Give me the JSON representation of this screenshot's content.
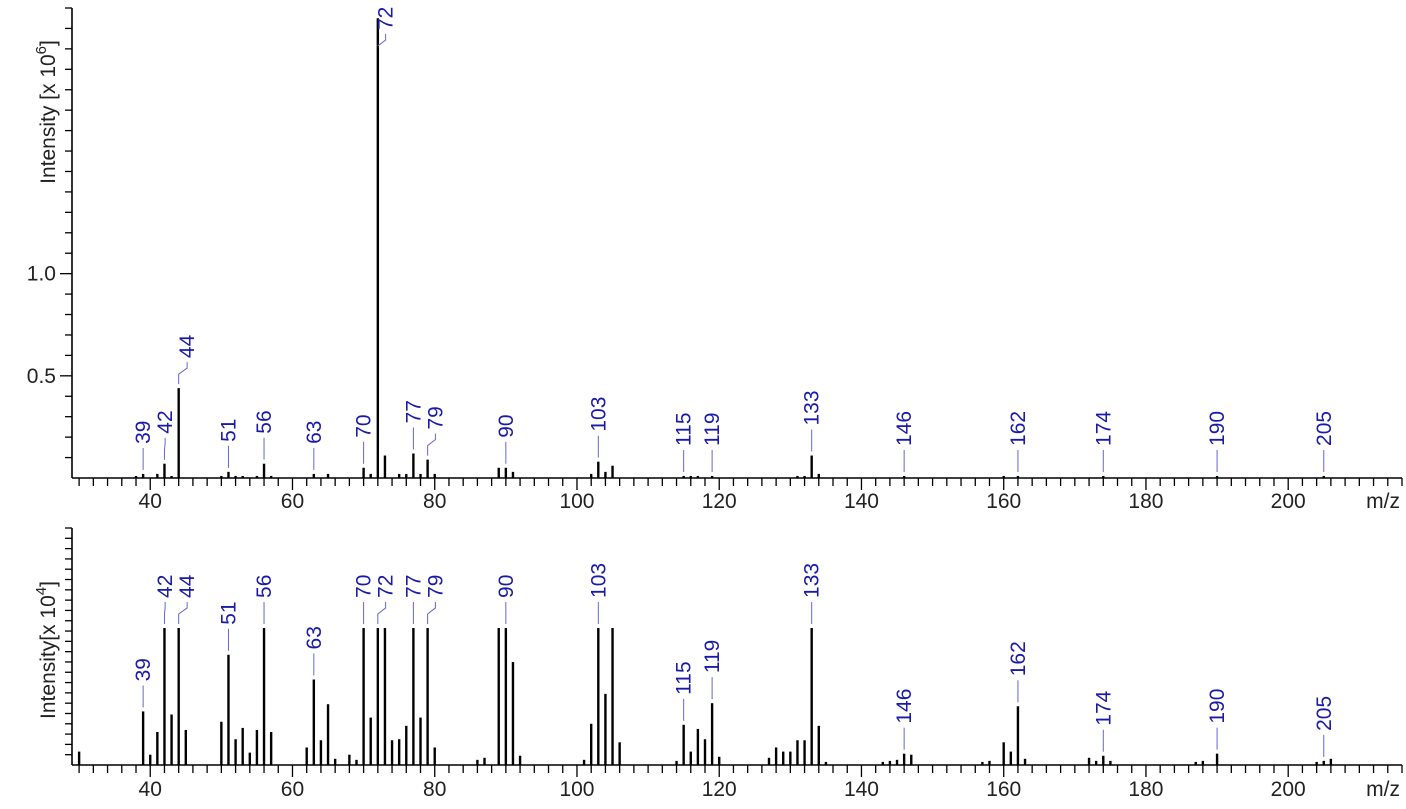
{
  "chart_data": [
    {
      "type": "bar",
      "title": "",
      "xlabel": "m/z",
      "ylabel": "Intensity [x 10",
      "ylabel_exp": "6",
      "ylabel_close": "]",
      "xlim": [
        29,
        216
      ],
      "ylim": [
        0,
        2.3
      ],
      "x_ticks": [
        40,
        60,
        80,
        100,
        120,
        140,
        160,
        180,
        200
      ],
      "y_ticks": [
        0.5,
        1.0
      ],
      "y_tick_labels": [
        "0.5",
        "1.0"
      ],
      "points": [
        {
          "mz": 38,
          "intensity": 0.01
        },
        {
          "mz": 39,
          "intensity": 0.02
        },
        {
          "mz": 41,
          "intensity": 0.02
        },
        {
          "mz": 42,
          "intensity": 0.07
        },
        {
          "mz": 43,
          "intensity": 0.01
        },
        {
          "mz": 44,
          "intensity": 0.44
        },
        {
          "mz": 50,
          "intensity": 0.01
        },
        {
          "mz": 51,
          "intensity": 0.03
        },
        {
          "mz": 52,
          "intensity": 0.01
        },
        {
          "mz": 53,
          "intensity": 0.01
        },
        {
          "mz": 55,
          "intensity": 0.01
        },
        {
          "mz": 56,
          "intensity": 0.07
        },
        {
          "mz": 57,
          "intensity": 0.01
        },
        {
          "mz": 63,
          "intensity": 0.02
        },
        {
          "mz": 65,
          "intensity": 0.02
        },
        {
          "mz": 70,
          "intensity": 0.05
        },
        {
          "mz": 71,
          "intensity": 0.02
        },
        {
          "mz": 72,
          "intensity": 2.25
        },
        {
          "mz": 73,
          "intensity": 0.11
        },
        {
          "mz": 75,
          "intensity": 0.02
        },
        {
          "mz": 76,
          "intensity": 0.02
        },
        {
          "mz": 77,
          "intensity": 0.12
        },
        {
          "mz": 78,
          "intensity": 0.02
        },
        {
          "mz": 79,
          "intensity": 0.09
        },
        {
          "mz": 80,
          "intensity": 0.02
        },
        {
          "mz": 89,
          "intensity": 0.05
        },
        {
          "mz": 90,
          "intensity": 0.05
        },
        {
          "mz": 91,
          "intensity": 0.03
        },
        {
          "mz": 102,
          "intensity": 0.02
        },
        {
          "mz": 103,
          "intensity": 0.08
        },
        {
          "mz": 104,
          "intensity": 0.03
        },
        {
          "mz": 105,
          "intensity": 0.06
        },
        {
          "mz": 115,
          "intensity": 0.01
        },
        {
          "mz": 116,
          "intensity": 0.01
        },
        {
          "mz": 117,
          "intensity": 0.01
        },
        {
          "mz": 119,
          "intensity": 0.01
        },
        {
          "mz": 131,
          "intensity": 0.01
        },
        {
          "mz": 132,
          "intensity": 0.01
        },
        {
          "mz": 133,
          "intensity": 0.11
        },
        {
          "mz": 134,
          "intensity": 0.02
        },
        {
          "mz": 146,
          "intensity": 0.01
        },
        {
          "mz": 160,
          "intensity": 0.01
        },
        {
          "mz": 162,
          "intensity": 0.01
        },
        {
          "mz": 174,
          "intensity": 0.01
        },
        {
          "mz": 190,
          "intensity": 0.01
        },
        {
          "mz": 205,
          "intensity": 0.01
        }
      ],
      "peak_labels": [
        {
          "mz": 39,
          "label": "39"
        },
        {
          "mz": 42,
          "label": "42"
        },
        {
          "mz": 44,
          "label": "44"
        },
        {
          "mz": 51,
          "label": "51"
        },
        {
          "mz": 56,
          "label": "56"
        },
        {
          "mz": 63,
          "label": "63"
        },
        {
          "mz": 70,
          "label": "70"
        },
        {
          "mz": 72,
          "label": "72"
        },
        {
          "mz": 77,
          "label": "77"
        },
        {
          "mz": 79,
          "label": "79"
        },
        {
          "mz": 90,
          "label": "90"
        },
        {
          "mz": 103,
          "label": "103"
        },
        {
          "mz": 115,
          "label": "115"
        },
        {
          "mz": 119,
          "label": "119"
        },
        {
          "mz": 133,
          "label": "133"
        },
        {
          "mz": 146,
          "label": "146"
        },
        {
          "mz": 162,
          "label": "162"
        },
        {
          "mz": 174,
          "label": "174"
        },
        {
          "mz": 190,
          "label": "190"
        },
        {
          "mz": 205,
          "label": "205"
        }
      ]
    },
    {
      "type": "bar",
      "title": "",
      "xlabel": "m/z",
      "ylabel": "Intensity[x 10",
      "ylabel_exp": "4",
      "ylabel_close": "]",
      "xlim": [
        29,
        216
      ],
      "ylim": [
        0,
        2.3
      ],
      "x_ticks": [
        40,
        60,
        80,
        100,
        120,
        140,
        160,
        180,
        200
      ],
      "y_ticks": [],
      "y_tick_labels": [],
      "points": [
        {
          "mz": 30,
          "intensity": 0.13
        },
        {
          "mz": 39,
          "intensity": 0.52
        },
        {
          "mz": 40,
          "intensity": 0.1
        },
        {
          "mz": 41,
          "intensity": 0.32
        },
        {
          "mz": 42,
          "intensity": 1.33
        },
        {
          "mz": 43,
          "intensity": 0.49
        },
        {
          "mz": 44,
          "intensity": 1.33
        },
        {
          "mz": 45,
          "intensity": 0.34
        },
        {
          "mz": 50,
          "intensity": 0.42
        },
        {
          "mz": 51,
          "intensity": 1.07
        },
        {
          "mz": 52,
          "intensity": 0.25
        },
        {
          "mz": 53,
          "intensity": 0.36
        },
        {
          "mz": 54,
          "intensity": 0.12
        },
        {
          "mz": 55,
          "intensity": 0.34
        },
        {
          "mz": 56,
          "intensity": 1.33
        },
        {
          "mz": 57,
          "intensity": 0.32
        },
        {
          "mz": 62,
          "intensity": 0.17
        },
        {
          "mz": 63,
          "intensity": 0.83
        },
        {
          "mz": 64,
          "intensity": 0.24
        },
        {
          "mz": 65,
          "intensity": 0.59
        },
        {
          "mz": 66,
          "intensity": 0.06
        },
        {
          "mz": 68,
          "intensity": 0.1
        },
        {
          "mz": 69,
          "intensity": 0.05
        },
        {
          "mz": 70,
          "intensity": 1.33
        },
        {
          "mz": 71,
          "intensity": 0.46
        },
        {
          "mz": 72,
          "intensity": 1.33
        },
        {
          "mz": 73,
          "intensity": 1.33
        },
        {
          "mz": 74,
          "intensity": 0.24
        },
        {
          "mz": 75,
          "intensity": 0.25
        },
        {
          "mz": 76,
          "intensity": 0.38
        },
        {
          "mz": 77,
          "intensity": 1.33
        },
        {
          "mz": 78,
          "intensity": 0.46
        },
        {
          "mz": 79,
          "intensity": 1.33
        },
        {
          "mz": 80,
          "intensity": 0.17
        },
        {
          "mz": 86,
          "intensity": 0.05
        },
        {
          "mz": 87,
          "intensity": 0.07
        },
        {
          "mz": 89,
          "intensity": 1.33
        },
        {
          "mz": 90,
          "intensity": 1.33
        },
        {
          "mz": 91,
          "intensity": 1.0
        },
        {
          "mz": 92,
          "intensity": 0.09
        },
        {
          "mz": 101,
          "intensity": 0.05
        },
        {
          "mz": 102,
          "intensity": 0.4
        },
        {
          "mz": 103,
          "intensity": 1.33
        },
        {
          "mz": 104,
          "intensity": 0.69
        },
        {
          "mz": 105,
          "intensity": 1.33
        },
        {
          "mz": 106,
          "intensity": 0.22
        },
        {
          "mz": 114,
          "intensity": 0.04
        },
        {
          "mz": 115,
          "intensity": 0.39
        },
        {
          "mz": 116,
          "intensity": 0.13
        },
        {
          "mz": 117,
          "intensity": 0.35
        },
        {
          "mz": 118,
          "intensity": 0.25
        },
        {
          "mz": 119,
          "intensity": 0.6
        },
        {
          "mz": 120,
          "intensity": 0.08
        },
        {
          "mz": 127,
          "intensity": 0.07
        },
        {
          "mz": 128,
          "intensity": 0.17
        },
        {
          "mz": 129,
          "intensity": 0.13
        },
        {
          "mz": 130,
          "intensity": 0.13
        },
        {
          "mz": 131,
          "intensity": 0.24
        },
        {
          "mz": 132,
          "intensity": 0.24
        },
        {
          "mz": 133,
          "intensity": 1.33
        },
        {
          "mz": 134,
          "intensity": 0.38
        },
        {
          "mz": 135,
          "intensity": 0.03
        },
        {
          "mz": 143,
          "intensity": 0.03
        },
        {
          "mz": 144,
          "intensity": 0.04
        },
        {
          "mz": 145,
          "intensity": 0.05
        },
        {
          "mz": 146,
          "intensity": 0.11
        },
        {
          "mz": 147,
          "intensity": 0.1
        },
        {
          "mz": 157,
          "intensity": 0.03
        },
        {
          "mz": 158,
          "intensity": 0.04
        },
        {
          "mz": 160,
          "intensity": 0.22
        },
        {
          "mz": 161,
          "intensity": 0.13
        },
        {
          "mz": 162,
          "intensity": 0.57
        },
        {
          "mz": 163,
          "intensity": 0.06
        },
        {
          "mz": 172,
          "intensity": 0.07
        },
        {
          "mz": 173,
          "intensity": 0.04
        },
        {
          "mz": 174,
          "intensity": 0.09
        },
        {
          "mz": 175,
          "intensity": 0.04
        },
        {
          "mz": 187,
          "intensity": 0.03
        },
        {
          "mz": 188,
          "intensity": 0.04
        },
        {
          "mz": 190,
          "intensity": 0.11
        },
        {
          "mz": 204,
          "intensity": 0.03
        },
        {
          "mz": 205,
          "intensity": 0.04
        },
        {
          "mz": 206,
          "intensity": 0.06
        }
      ],
      "peak_labels": [
        {
          "mz": 39,
          "label": "39"
        },
        {
          "mz": 42,
          "label": "42"
        },
        {
          "mz": 44,
          "label": "44"
        },
        {
          "mz": 51,
          "label": "51"
        },
        {
          "mz": 56,
          "label": "56"
        },
        {
          "mz": 63,
          "label": "63"
        },
        {
          "mz": 70,
          "label": "70"
        },
        {
          "mz": 72,
          "label": "72"
        },
        {
          "mz": 77,
          "label": "77"
        },
        {
          "mz": 79,
          "label": "79"
        },
        {
          "mz": 90,
          "label": "90"
        },
        {
          "mz": 103,
          "label": "103"
        },
        {
          "mz": 115,
          "label": "115"
        },
        {
          "mz": 119,
          "label": "119"
        },
        {
          "mz": 133,
          "label": "133"
        },
        {
          "mz": 146,
          "label": "146"
        },
        {
          "mz": 162,
          "label": "162"
        },
        {
          "mz": 174,
          "label": "174"
        },
        {
          "mz": 190,
          "label": "190"
        },
        {
          "mz": 205,
          "label": "205"
        }
      ]
    }
  ]
}
